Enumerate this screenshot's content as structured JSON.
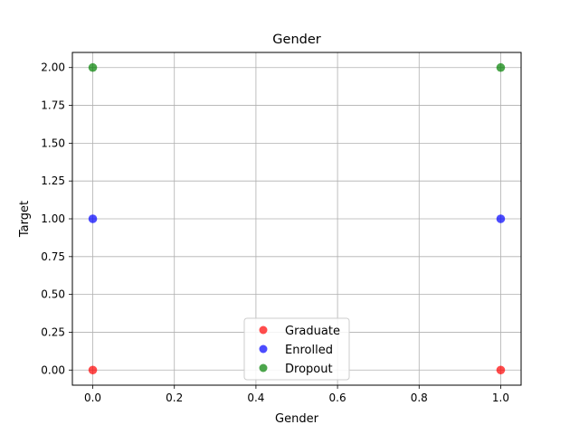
{
  "chart_data": {
    "type": "scatter",
    "title": "Gender",
    "xlabel": "Gender",
    "ylabel": "Target",
    "xlim": [
      -0.05,
      1.05
    ],
    "ylim": [
      -0.1,
      2.1
    ],
    "xticks": [
      0.0,
      0.2,
      0.4,
      0.6,
      0.8,
      1.0
    ],
    "xtick_labels": [
      "0.0",
      "0.2",
      "0.4",
      "0.6",
      "0.8",
      "1.0"
    ],
    "yticks": [
      0.0,
      0.25,
      0.5,
      0.75,
      1.0,
      1.25,
      1.5,
      1.75,
      2.0
    ],
    "ytick_labels": [
      "0.00",
      "0.25",
      "0.50",
      "0.75",
      "1.00",
      "1.25",
      "1.50",
      "1.75",
      "2.00"
    ],
    "grid": true,
    "legend_position": "bottom-center",
    "series": [
      {
        "name": "Graduate",
        "color": "#ff0000",
        "points": [
          [
            0,
            0
          ],
          [
            1,
            0
          ]
        ]
      },
      {
        "name": "Enrolled",
        "color": "#0000ff",
        "points": [
          [
            0,
            1
          ],
          [
            1,
            1
          ]
        ]
      },
      {
        "name": "Dropout",
        "color": "#008000",
        "points": [
          [
            0,
            2
          ],
          [
            1,
            2
          ]
        ]
      }
    ]
  }
}
